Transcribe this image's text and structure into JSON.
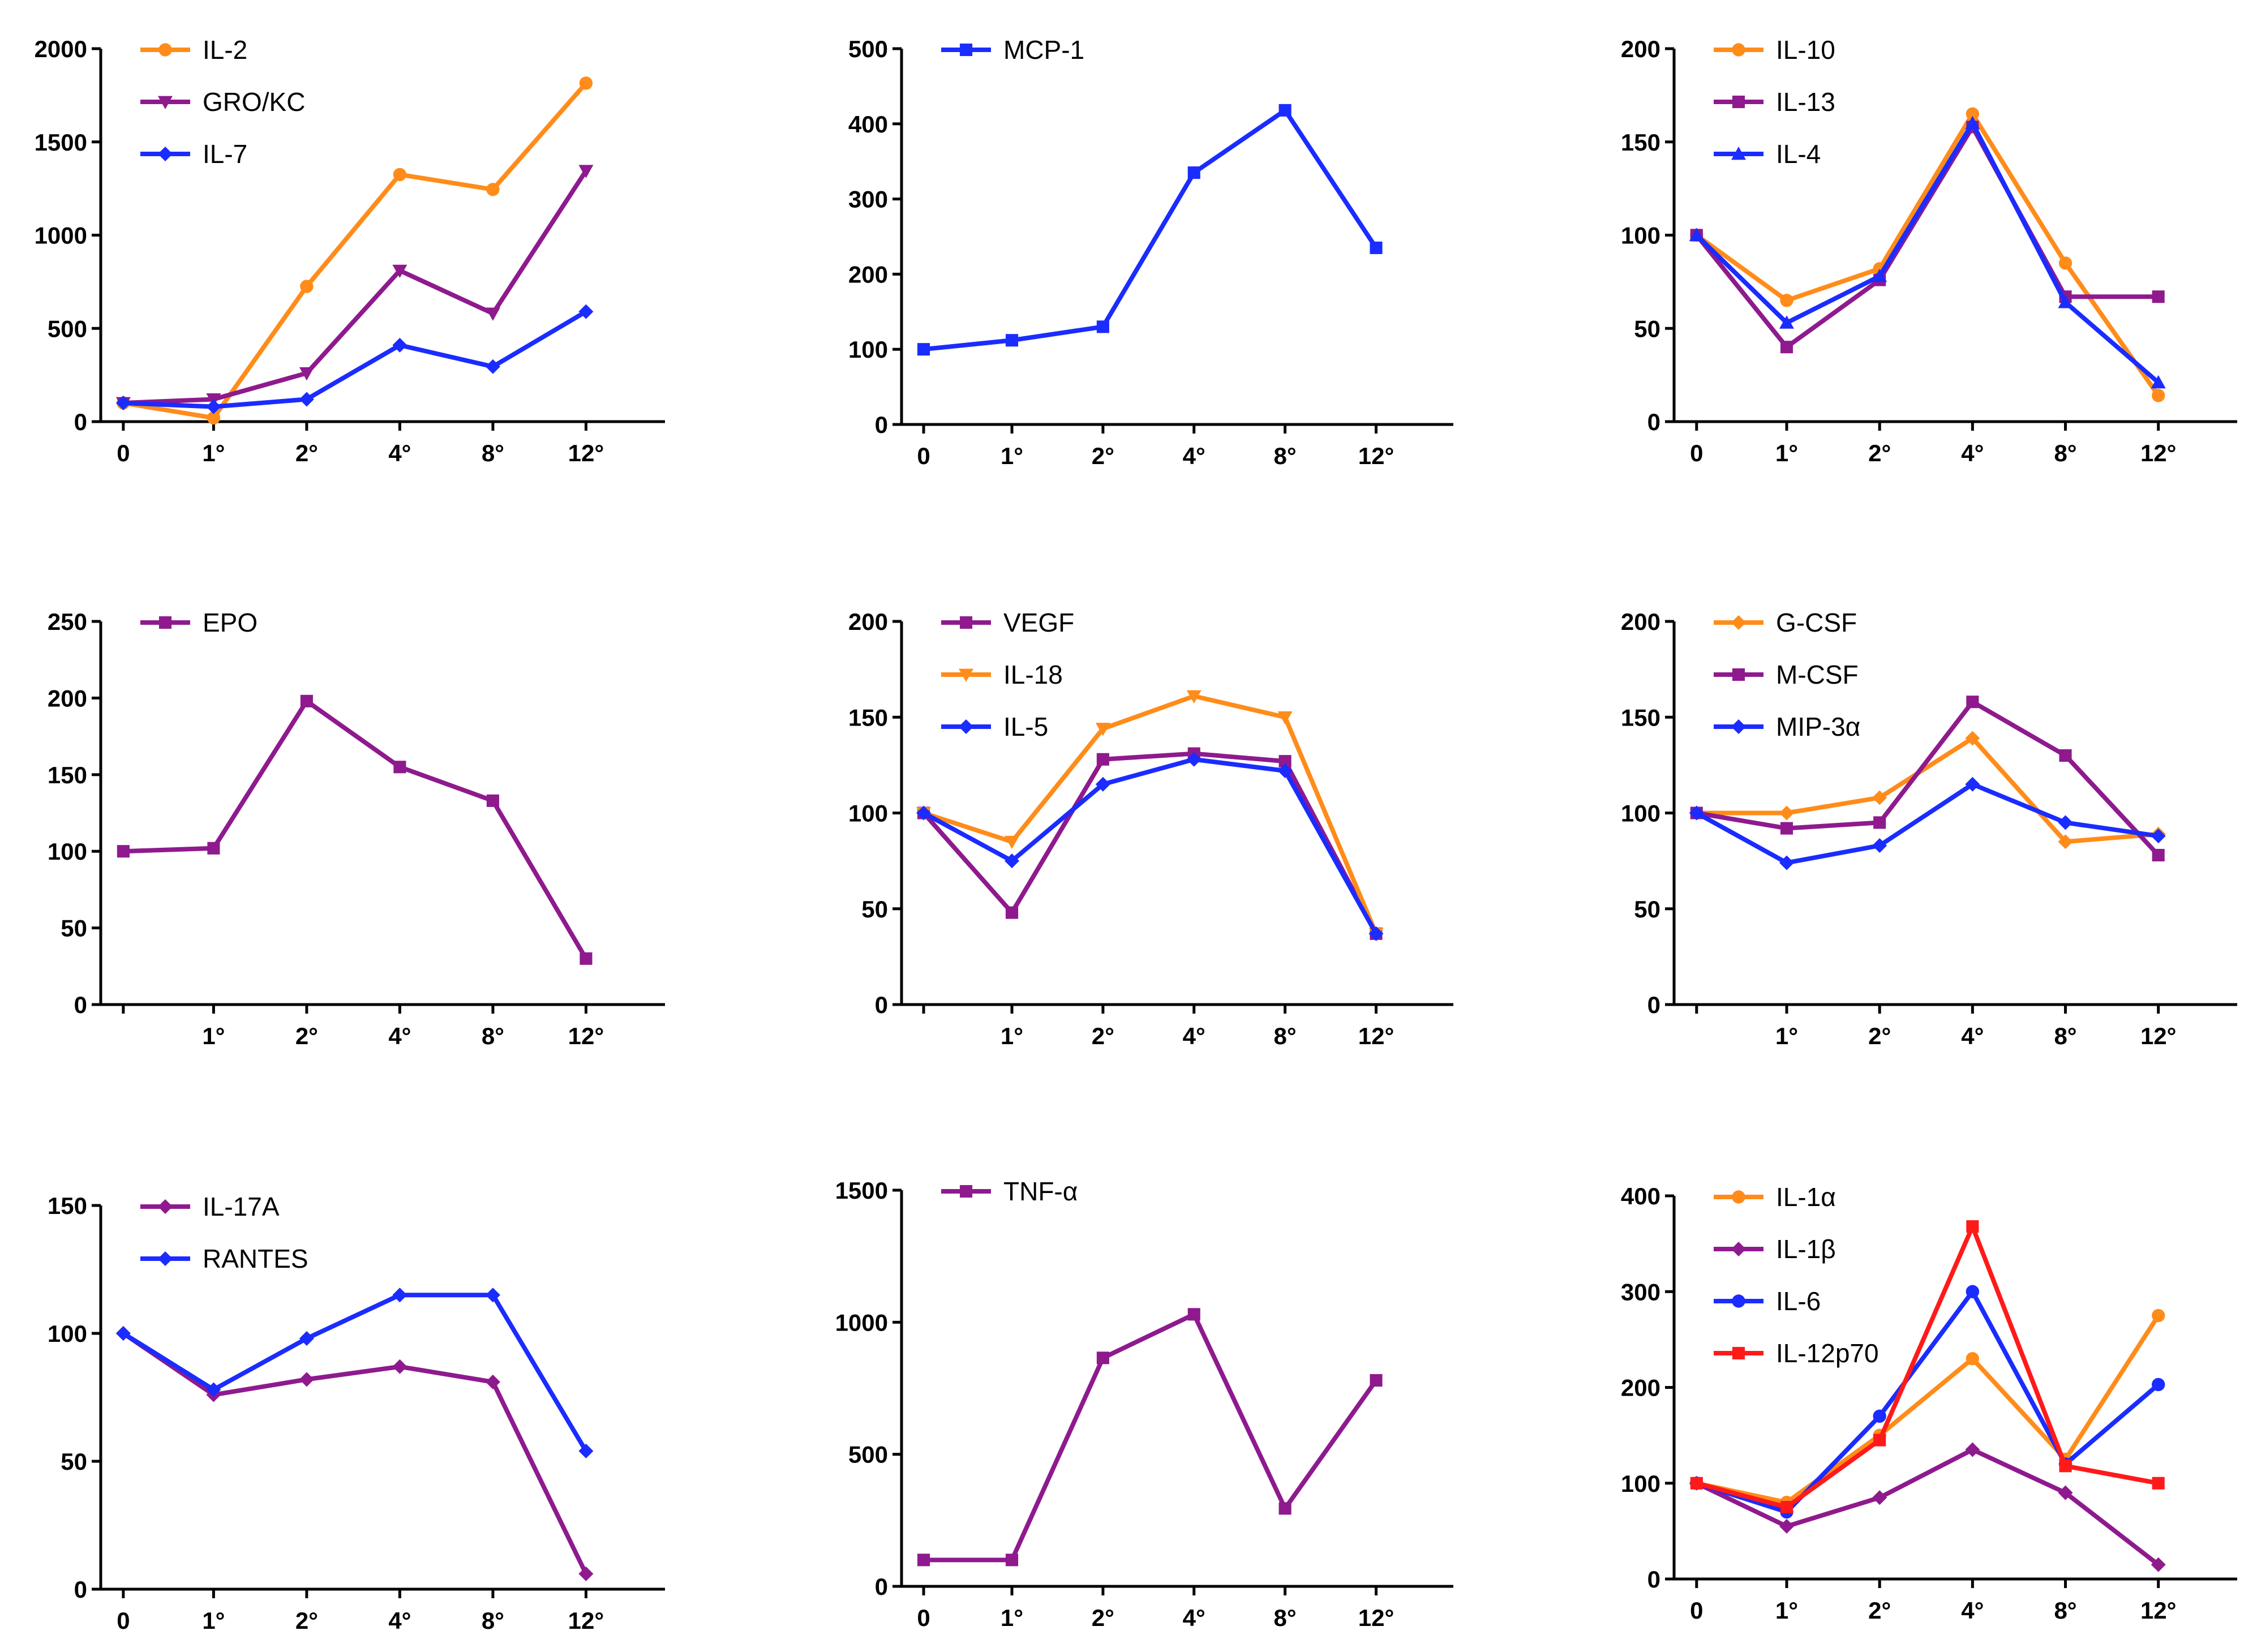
{
  "chart_data": [
    {
      "type": "line",
      "categories": [
        "0",
        "1°",
        "2°",
        "4°",
        "8°",
        "12°"
      ],
      "ylim": [
        0,
        2000
      ],
      "yticks": [
        0,
        500,
        1000,
        1500,
        2000
      ],
      "series": [
        {
          "name": "IL-2",
          "color": "#ff8c1a",
          "marker": "circle",
          "values": [
            100,
            20,
            725,
            1325,
            1245,
            1815
          ]
        },
        {
          "name": "GRO/KC",
          "color": "#8e1a8e",
          "marker": "triangle-down",
          "values": [
            100,
            120,
            260,
            810,
            580,
            1345
          ]
        },
        {
          "name": "IL-7",
          "color": "#1a2cff",
          "marker": "diamond",
          "values": [
            100,
            80,
            120,
            410,
            295,
            590
          ]
        }
      ]
    },
    {
      "type": "line",
      "categories": [
        "0",
        "1°",
        "2°",
        "4°",
        "8°",
        "12°"
      ],
      "ylim": [
        0,
        500
      ],
      "yticks": [
        0,
        100,
        200,
        300,
        400,
        500
      ],
      "series": [
        {
          "name": "MCP-1",
          "color": "#1a2cff",
          "marker": "square",
          "values": [
            100,
            112,
            130,
            335,
            418,
            235
          ]
        }
      ]
    },
    {
      "type": "line",
      "categories": [
        "0",
        "1°",
        "2°",
        "4°",
        "8°",
        "12°"
      ],
      "ylim": [
        0,
        200
      ],
      "yticks": [
        0,
        50,
        100,
        150,
        200
      ],
      "series": [
        {
          "name": "IL-10",
          "color": "#ff8c1a",
          "marker": "circle",
          "values": [
            100,
            65,
            82,
            165,
            85,
            14
          ]
        },
        {
          "name": "IL-13",
          "color": "#8e1a8e",
          "marker": "square",
          "values": [
            100,
            40,
            76,
            158,
            67,
            67
          ]
        },
        {
          "name": "IL-4",
          "color": "#1a2cff",
          "marker": "triangle-up",
          "values": [
            100,
            53,
            78,
            160,
            64,
            21
          ]
        }
      ]
    },
    {
      "type": "line",
      "categories": [
        "",
        "1°",
        "2°",
        "4°",
        "8°",
        "12°"
      ],
      "ylim": [
        0,
        250
      ],
      "yticks": [
        0,
        50,
        100,
        150,
        200,
        250
      ],
      "series": [
        {
          "name": "EPO",
          "color": "#8e1a8e",
          "marker": "square",
          "values": [
            100,
            102,
            198,
            155,
            133,
            30
          ]
        }
      ]
    },
    {
      "type": "line",
      "categories": [
        "",
        "1°",
        "2°",
        "4°",
        "8°",
        "12°"
      ],
      "ylim": [
        0,
        200
      ],
      "yticks": [
        0,
        50,
        100,
        150,
        200
      ],
      "series": [
        {
          "name": "VEGF",
          "color": "#8e1a8e",
          "marker": "square",
          "values": [
            100,
            48,
            128,
            131,
            127,
            37
          ]
        },
        {
          "name": "IL-18",
          "color": "#ff8c1a",
          "marker": "triangle-down",
          "values": [
            100,
            85,
            144,
            161,
            150,
            37
          ]
        },
        {
          "name": "IL-5",
          "color": "#1a2cff",
          "marker": "diamond",
          "values": [
            100,
            75,
            115,
            128,
            122,
            37
          ]
        }
      ]
    },
    {
      "type": "line",
      "categories": [
        "",
        "1°",
        "2°",
        "4°",
        "8°",
        "12°"
      ],
      "ylim": [
        0,
        200
      ],
      "yticks": [
        0,
        50,
        100,
        150,
        200
      ],
      "series": [
        {
          "name": "G-CSF",
          "color": "#ff8c1a",
          "marker": "diamond",
          "values": [
            100,
            100,
            108,
            139,
            85,
            89
          ]
        },
        {
          "name": "M-CSF",
          "color": "#8e1a8e",
          "marker": "square",
          "values": [
            100,
            92,
            95,
            158,
            130,
            78
          ]
        },
        {
          "name": "MIP-3α",
          "color": "#1a2cff",
          "marker": "diamond",
          "values": [
            100,
            74,
            83,
            115,
            95,
            88
          ]
        }
      ]
    },
    {
      "type": "line",
      "categories": [
        "0",
        "1°",
        "2°",
        "4°",
        "8°",
        "12°"
      ],
      "ylim": [
        0,
        150
      ],
      "yticks": [
        0,
        50,
        100,
        150
      ],
      "series": [
        {
          "name": "IL-17A",
          "color": "#8e1a8e",
          "marker": "diamond",
          "values": [
            100,
            76,
            82,
            87,
            81,
            6
          ]
        },
        {
          "name": "RANTES",
          "color": "#1a2cff",
          "marker": "diamond",
          "values": [
            100,
            78,
            98,
            115,
            115,
            54
          ]
        }
      ]
    },
    {
      "type": "line",
      "categories": [
        "0",
        "1°",
        "2°",
        "4°",
        "8°",
        "12°"
      ],
      "ylim": [
        0,
        1500
      ],
      "yticks": [
        0,
        500,
        1000,
        1500
      ],
      "series": [
        {
          "name": "TNF-α",
          "color": "#8e1a8e",
          "marker": "square",
          "values": [
            100,
            100,
            865,
            1030,
            295,
            780
          ]
        }
      ]
    },
    {
      "type": "line",
      "categories": [
        "0",
        "1°",
        "2°",
        "4°",
        "8°",
        "12°"
      ],
      "ylim": [
        0,
        400
      ],
      "yticks": [
        0,
        100,
        200,
        300,
        400
      ],
      "series": [
        {
          "name": "IL-1α",
          "color": "#ff8c1a",
          "marker": "circle",
          "values": [
            100,
            80,
            150,
            230,
            125,
            275
          ]
        },
        {
          "name": "IL-1β",
          "color": "#8e1a8e",
          "marker": "diamond",
          "values": [
            100,
            55,
            85,
            135,
            90,
            15
          ]
        },
        {
          "name": "IL-6",
          "color": "#1a2cff",
          "marker": "circle",
          "values": [
            100,
            70,
            170,
            300,
            120,
            203
          ]
        },
        {
          "name": "IL-12p70",
          "color": "#ff1a1a",
          "marker": "square",
          "values": [
            100,
            75,
            145,
            368,
            118,
            100
          ]
        }
      ]
    }
  ]
}
